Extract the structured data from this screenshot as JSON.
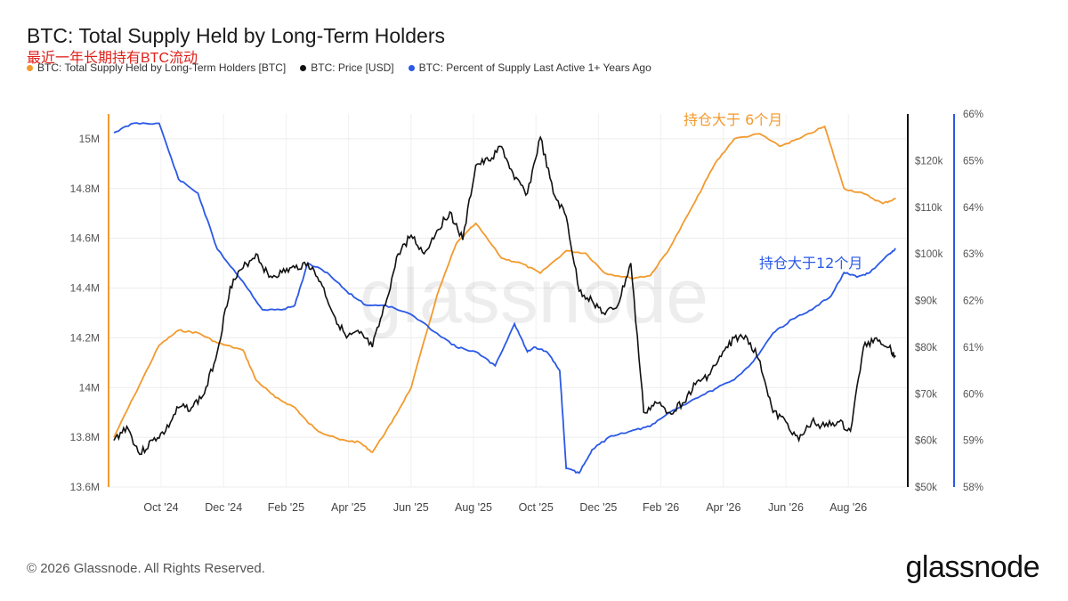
{
  "header": {
    "title": "BTC: Total Supply Held by Long-Term Holders",
    "subtitle": "最近一年长期持有BTC流动"
  },
  "legend": [
    {
      "label": "BTC: Total Supply Held by Long-Term Holders [BTC]",
      "color": "#f29a2e"
    },
    {
      "label": "BTC: Price [USD]",
      "color": "#111111"
    },
    {
      "label": "BTC: Percent of Supply Last Active 1+ Years Ago",
      "color": "#2b59e6"
    }
  ],
  "footer": {
    "copyright": "© 2026 Glassnode. All Rights Reserved.",
    "brand": "glassnode"
  },
  "chart_data": {
    "type": "line",
    "watermark": "glassnode",
    "x_ticks": [
      "Oct '24",
      "Dec '24",
      "Feb '25",
      "Apr '25",
      "Jun '25",
      "Aug '25",
      "Oct '25",
      "Dec '25",
      "Feb '26",
      "Apr '26",
      "Jun '26",
      "Aug '26"
    ],
    "y_left": {
      "ticks": [
        "13.6M",
        "13.8M",
        "14M",
        "14.2M",
        "14.4M",
        "14.6M",
        "14.8M",
        "15M"
      ],
      "range": [
        13.6,
        15.1
      ],
      "unit": "M BTC"
    },
    "y_right_price": {
      "ticks": [
        "$50k",
        "$60k",
        "$70k",
        "$80k",
        "$90k",
        "$100k",
        "$110k",
        "$120k"
      ],
      "range": [
        50,
        130
      ],
      "unit": "k USD"
    },
    "y_right_pct": {
      "ticks": [
        "58%",
        "59%",
        "60%",
        "61%",
        "62%",
        "63%",
        "64%",
        "65%",
        "66%"
      ],
      "range": [
        58,
        66
      ],
      "unit": "%"
    },
    "annotations": [
      {
        "text": "持仓大于 6个月",
        "color": "#f29a2e",
        "series": "lth"
      },
      {
        "text": "持仓大于12个月",
        "color": "#2b59e6",
        "series": "pct"
      }
    ],
    "series": [
      {
        "name": "BTC: Total Supply Held by Long-Term Holders [BTC]",
        "axis": "left",
        "color": "#f29a2e",
        "x": [
          0,
          0.3,
          0.7,
          1.0,
          1.3,
          1.6,
          2.0,
          2.2,
          2.5,
          2.8,
          3.0,
          3.2,
          3.5,
          3.8,
          4.0,
          4.3,
          4.6,
          5.0,
          5.3,
          5.6,
          6.0,
          6.3,
          6.6,
          7.0,
          7.3,
          7.6,
          8.0,
          8.3,
          8.6,
          9.0,
          9.3,
          9.6,
          10.0,
          10.3,
          10.6,
          11.0,
          11.3,
          11.6,
          11.9,
          12.1
        ],
        "values": [
          13.8,
          13.96,
          14.17,
          14.23,
          14.22,
          14.18,
          14.15,
          14.03,
          13.96,
          13.92,
          13.86,
          13.82,
          13.79,
          13.78,
          13.74,
          13.86,
          14.0,
          14.37,
          14.58,
          14.66,
          14.52,
          14.5,
          14.46,
          14.55,
          14.54,
          14.46,
          14.44,
          14.45,
          14.56,
          14.75,
          14.9,
          15.0,
          15.02,
          14.97,
          15.0,
          15.05,
          14.8,
          14.78,
          14.74,
          14.76
        ]
      },
      {
        "name": "BTC: Price [USD]",
        "axis": "right_price",
        "color": "#111111",
        "x": [
          0,
          0.2,
          0.4,
          0.6,
          0.8,
          1.0,
          1.2,
          1.4,
          1.6,
          1.8,
          2.0,
          2.2,
          2.4,
          2.6,
          2.8,
          3.0,
          3.2,
          3.4,
          3.6,
          3.8,
          4.0,
          4.2,
          4.4,
          4.6,
          4.8,
          5.0,
          5.2,
          5.4,
          5.6,
          5.8,
          6.0,
          6.2,
          6.4,
          6.6,
          6.8,
          7.0,
          7.2,
          7.4,
          7.6,
          7.8,
          8.0,
          8.2,
          8.4,
          8.6,
          8.8,
          9.0,
          9.2,
          9.4,
          9.6,
          9.8,
          10.0,
          10.2,
          10.4,
          10.6,
          10.8,
          11.0,
          11.2,
          11.4,
          11.6,
          11.8,
          12.0,
          12.1
        ],
        "values": [
          60,
          63,
          57,
          60,
          62,
          67,
          67,
          70,
          79,
          93,
          97,
          100,
          95,
          96,
          97,
          98,
          94,
          87,
          82,
          83,
          80,
          89,
          100,
          104,
          100,
          105,
          109,
          103,
          119,
          120,
          123,
          116,
          113,
          125,
          113,
          108,
          92,
          90,
          87,
          89,
          98,
          66,
          68,
          66,
          68,
          72,
          74,
          78,
          82,
          82,
          77,
          66,
          64,
          60,
          64,
          63,
          64,
          62,
          80,
          82,
          80,
          78
        ]
      },
      {
        "name": "BTC: Percent of Supply Last Active 1+ Years Ago",
        "axis": "right_pct",
        "color": "#2b59e6",
        "x": [
          0,
          0.3,
          0.7,
          1.0,
          1.3,
          1.6,
          2.0,
          2.3,
          2.6,
          2.8,
          3.0,
          3.3,
          3.6,
          3.9,
          4.2,
          4.6,
          5.0,
          5.3,
          5.6,
          5.9,
          6.2,
          6.4,
          6.5,
          6.7,
          6.9,
          7.0,
          7.2,
          7.4,
          7.7,
          8.0,
          8.3,
          8.6,
          9.0,
          9.3,
          9.6,
          9.9,
          10.2,
          10.5,
          10.8,
          11.1,
          11.3,
          11.5,
          11.7,
          12.0,
          12.1
        ],
        "values": [
          65.6,
          65.8,
          65.8,
          64.6,
          64.3,
          63.1,
          62.4,
          61.8,
          61.8,
          61.9,
          62.8,
          62.6,
          62.2,
          61.9,
          61.9,
          61.7,
          61.3,
          61.0,
          60.9,
          60.6,
          61.5,
          60.9,
          61.0,
          60.9,
          60.5,
          58.4,
          58.3,
          58.8,
          59.1,
          59.2,
          59.3,
          59.6,
          59.9,
          60.1,
          60.3,
          60.7,
          61.3,
          61.6,
          61.8,
          62.1,
          62.6,
          62.5,
          62.6,
          63.0,
          63.1
        ]
      }
    ]
  }
}
